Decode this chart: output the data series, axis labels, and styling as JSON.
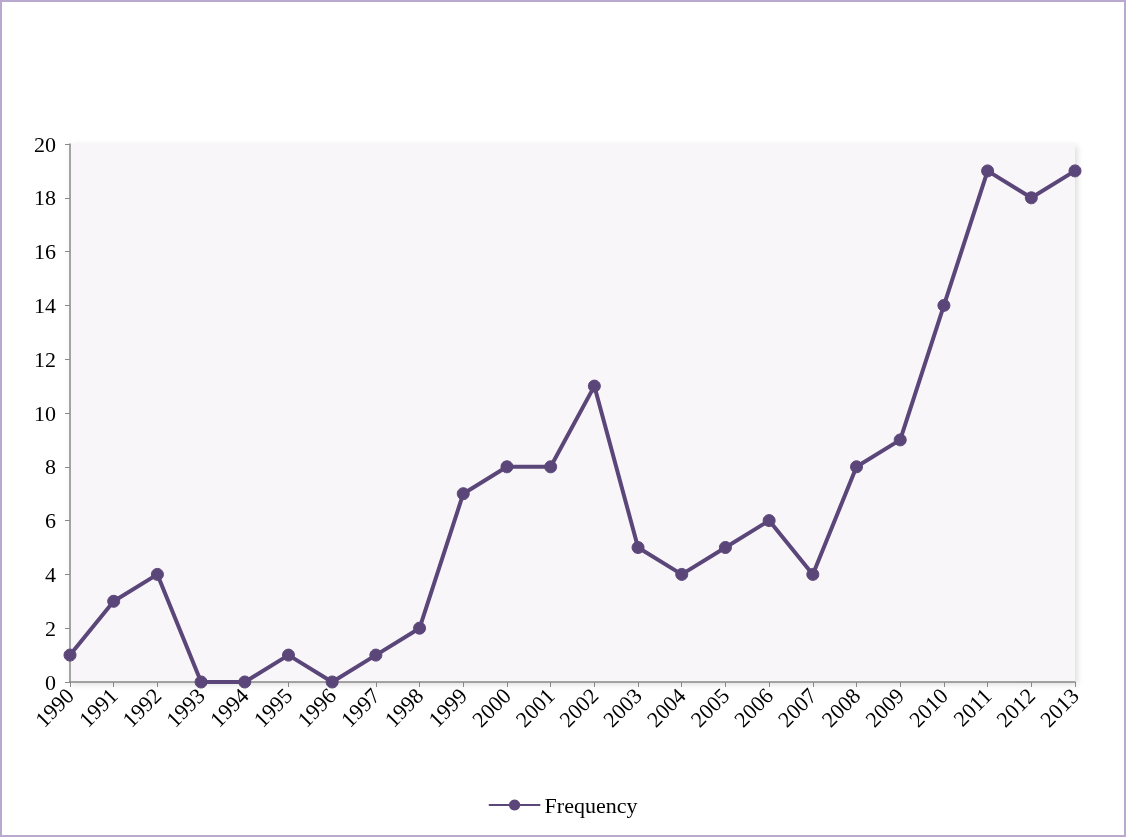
{
  "chart_data": {
    "type": "line",
    "categories": [
      "1990",
      "1991",
      "1992",
      "1993",
      "1994",
      "1995",
      "1996",
      "1997",
      "1998",
      "1999",
      "2000",
      "2001",
      "2002",
      "2003",
      "2004",
      "2005",
      "2006",
      "2007",
      "2008",
      "2009",
      "2010",
      "2011",
      "2012",
      "2013"
    ],
    "series": [
      {
        "name": "Frequency",
        "color": "#5b4679",
        "values": [
          1,
          3,
          4,
          0,
          0,
          1,
          0,
          1,
          2,
          7,
          8,
          8,
          11,
          5,
          4,
          5,
          6,
          4,
          8,
          9,
          14,
          19,
          18,
          19
        ]
      }
    ],
    "ylim": [
      0,
      20
    ],
    "yticks": [
      0,
      2,
      4,
      6,
      8,
      10,
      12,
      14,
      16,
      18,
      20
    ],
    "grid": false,
    "legend": "bottom",
    "marker": "circle",
    "line_style": "solid"
  }
}
